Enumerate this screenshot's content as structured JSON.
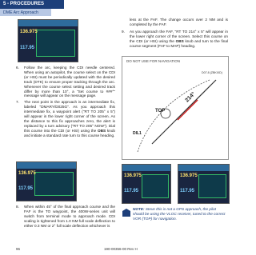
{
  "header": {
    "section": "5 - PROCEDURES",
    "subsection": "DME Arc Approach"
  },
  "left_column": {
    "screen_top": {
      "freq1": "136.975",
      "freq2": "117.95"
    },
    "steps": [
      {
        "number": "6.",
        "text": [
          "Follow the arc, keeping the CDI needle centered. When using an autopilot, the course select on the CDI (or HSI) must be periodically updated with the desired track (DTK) to ensure proper tracking through the arc. Whenever the course select setting and desired track differ by more than 10°, a \"Set course to ###°\" message will appear on the message page."
        ]
      },
      {
        "number": "7.",
        "text": [
          "The next point in the approach is an intermediate fix, labeled \"DMARY/D025G\". As you approach this intermediate fix, a waypoint alert (\"RT TO 205° x 5\") will appear in the lower right corner of the screen. As the distance to this fix approaches zero, the alert is replaced by a turn advisory (\"RT TO 205° NOW\"). Dial this course into the CDI (or HSI) using the ",
          "OBS",
          " knob and initiate a standard rate turn to this course heading."
        ]
      }
    ],
    "screen_middle": {
      "freq1": "136.975",
      "freq2": "117.95"
    },
    "step8": {
      "number": "8.",
      "text": [
        "When within 45° of the final approach course and the FAF is the TO waypoint, the 400W-series unit will switch from terminal mode to approach mode. CDI scaling is tightened from 1.0 NM full scale deflection to either 0.3 NM or 2° full scale deflection whichever is"
      ]
    }
  },
  "right_column": {
    "continued": "less at the FAF. The change occurs over 2 NM and is completed by the FAF.",
    "step9": {
      "number": "9.",
      "text": [
        "As you approach the FAF, \"RT TO 214° x 5\" will appear in the lower right corner of the screen. Select this course on the CDI (or HSI) using the ",
        "OBS",
        " knob and turn to the final course segment (FAF to MAP) heading."
      ]
    },
    "map": {
      "warning": "DO NOT USE FOR NAVIGATION",
      "course": "214°",
      "vor": "TOP",
      "fix": "DIL1",
      "arc_fix": "D07.8 (ZBKIXD)"
    },
    "screen_left": {
      "freq1": "136.975",
      "freq2": "117.95"
    },
    "screen_right": {
      "freq1": "136.975",
      "freq2": "117.95"
    },
    "note": {
      "label": "NOTE:",
      "text": "Steve this is not a GPS approach, the pilot should be using the VLOC receiver, tuned to the correct VOR (TOP) for navigation."
    }
  },
  "footer": {
    "page": "96",
    "doc": "190-00356-00 Rev H"
  }
}
